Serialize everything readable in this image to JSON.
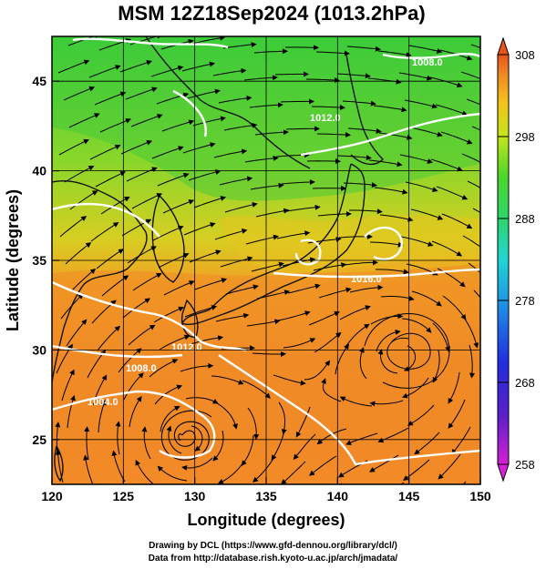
{
  "title": "MSM 12Z18Sep2024 (1013.2hPa)",
  "axes": {
    "xlabel": "Longitude (degrees)",
    "ylabel": "Latitude  (degrees)",
    "xlim": [
      120,
      150
    ],
    "ylim": [
      22.5,
      47.5
    ],
    "xticks": [
      "120",
      "125",
      "130",
      "135",
      "140",
      "145",
      "150"
    ],
    "yticks": [
      "25",
      "30",
      "35",
      "40",
      "45"
    ]
  },
  "colorbar": {
    "ticks": [
      "308",
      "298",
      "288",
      "278",
      "268",
      "258"
    ],
    "range": [
      258,
      308
    ],
    "colors": [
      "#d61fd6",
      "#2a24c8",
      "#1f7fe6",
      "#22d8e0",
      "#2ed66a",
      "#4ad62a",
      "#c4e61c",
      "#f4c41c",
      "#f08a24",
      "#e8541c"
    ]
  },
  "isobars": [
    {
      "label": "1008.0"
    },
    {
      "label": "1012.0"
    },
    {
      "label": "1016.0"
    },
    {
      "label": "1008.0"
    },
    {
      "label": "1004.0"
    },
    {
      "label": "1012.0"
    }
  ],
  "footer": {
    "line1": "Drawing by DCL (https://www.gfd-dennou.org/library/dcl/)",
    "line2": "Data from http://database.rish.kyoto-u.ac.jp/arch/jmadata/"
  }
}
